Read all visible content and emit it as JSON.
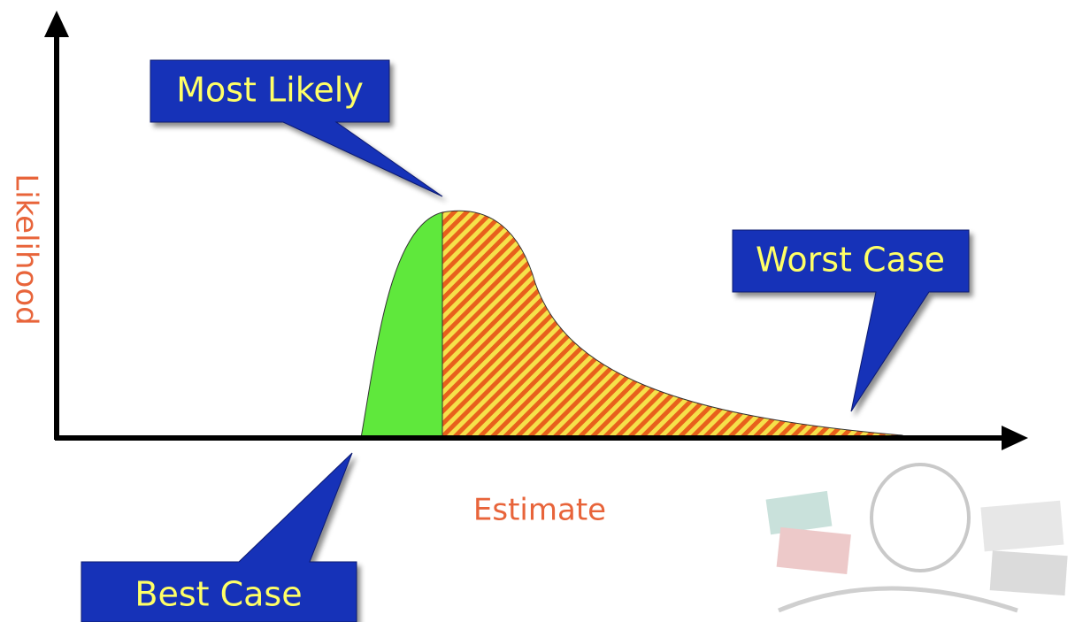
{
  "axes": {
    "y_label": "Likelihood",
    "x_label": "Estimate"
  },
  "callouts": {
    "most_likely": "Most Likely",
    "worst_case": "Worst Case",
    "best_case": "Best Case"
  }
}
